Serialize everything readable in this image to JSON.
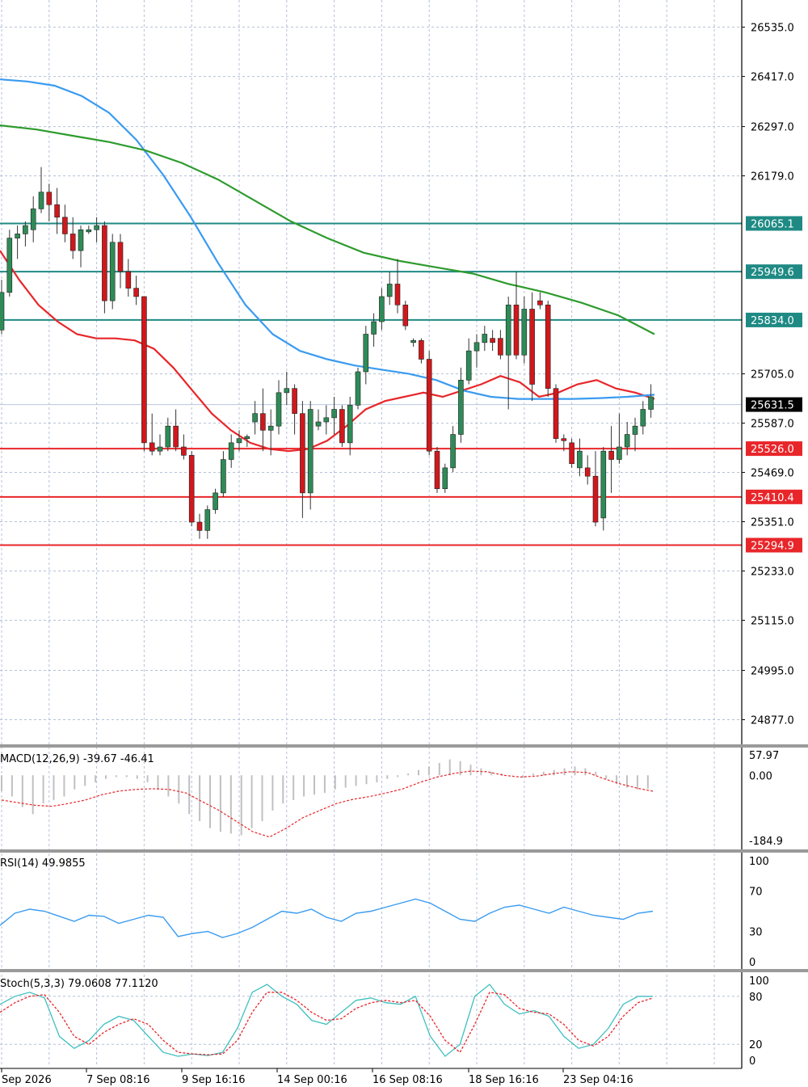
{
  "chart_data": [
    {
      "type": "candlestick",
      "panel": "price",
      "ylim": [
        24820,
        26600
      ],
      "y_ticks": [
        "26535.0",
        "26417.0",
        "26297.0",
        "26179.0",
        "26065.1",
        "25949.6",
        "25834.0",
        "25705.0",
        "25631.5",
        "25587.0",
        "25526.0",
        "25469.0",
        "25410.4",
        "25351.0",
        "25294.9",
        "25233.0",
        "25115.0",
        "24995.0",
        "24877.0"
      ],
      "current_price": "25631.5",
      "resistance_levels": [
        {
          "label": "26065.1",
          "value": 26065.1
        },
        {
          "label": "25949.6",
          "value": 25949.6
        },
        {
          "label": "25834.0",
          "value": 25834.0
        }
      ],
      "support_levels": [
        {
          "label": "25526.0",
          "value": 25526.0
        },
        {
          "label": "25410.4",
          "value": 25410.4
        },
        {
          "label": "25294.9",
          "value": 25294.9
        }
      ],
      "candles": [
        [
          25810,
          25930,
          25800,
          25900
        ],
        [
          25900,
          26050,
          25890,
          26030
        ],
        [
          26030,
          26060,
          25980,
          26040
        ],
        [
          26040,
          26070,
          26010,
          26060
        ],
        [
          26050,
          26130,
          26020,
          26100
        ],
        [
          26100,
          26200,
          26090,
          26140
        ],
        [
          26140,
          26160,
          26070,
          26110
        ],
        [
          26110,
          26150,
          26040,
          26080
        ],
        [
          26080,
          26110,
          26020,
          26040
        ],
        [
          26040,
          26080,
          25980,
          26000
        ],
        [
          26000,
          26060,
          25960,
          26050
        ],
        [
          26045,
          26060,
          26040,
          26050
        ],
        [
          26050,
          26080,
          26020,
          26060
        ],
        [
          26060,
          26070,
          25850,
          25880
        ],
        [
          25880,
          26040,
          25860,
          26020
        ],
        [
          26020,
          26040,
          25910,
          25950
        ],
        [
          25950,
          25980,
          25890,
          25910
        ],
        [
          25910,
          25940,
          25870,
          25890
        ],
        [
          25890,
          25890,
          25520,
          25540
        ],
        [
          25540,
          25610,
          25510,
          25520
        ],
        [
          25520,
          25560,
          25510,
          25530
        ],
        [
          25530,
          25600,
          25520,
          25580
        ],
        [
          25580,
          25620,
          25520,
          25530
        ],
        [
          25530,
          25560,
          25500,
          25510
        ],
        [
          25510,
          25520,
          25340,
          25350
        ],
        [
          25350,
          25370,
          25310,
          25330
        ],
        [
          25330,
          25390,
          25310,
          25380
        ],
        [
          25380,
          25430,
          25370,
          25420
        ],
        [
          25420,
          25520,
          25410,
          25500
        ],
        [
          25500,
          25560,
          25480,
          25540
        ],
        [
          25540,
          25570,
          25520,
          25550
        ],
        [
          25550,
          25560,
          25530,
          25555
        ],
        [
          25590,
          25640,
          25560,
          25610
        ],
        [
          25610,
          25670,
          25520,
          25570
        ],
        [
          25570,
          25620,
          25510,
          25580
        ],
        [
          25580,
          25690,
          25560,
          25660
        ],
        [
          25660,
          25710,
          25630,
          25670
        ],
        [
          25670,
          25680,
          25560,
          25610
        ],
        [
          25610,
          25640,
          25360,
          25420
        ],
        [
          25420,
          25640,
          25380,
          25620
        ],
        [
          25580,
          25620,
          25570,
          25590
        ],
        [
          25590,
          25630,
          25560,
          25600
        ],
        [
          25600,
          25650,
          25560,
          25620
        ],
        [
          25620,
          25630,
          25530,
          25540
        ],
        [
          25540,
          25650,
          25510,
          25630
        ],
        [
          25630,
          25720,
          25620,
          25710
        ],
        [
          25710,
          25820,
          25680,
          25800
        ],
        [
          25800,
          25850,
          25770,
          25830
        ],
        [
          25830,
          25910,
          25810,
          25890
        ],
        [
          25890,
          25950,
          25870,
          25920
        ],
        [
          25920,
          25980,
          25850,
          25870
        ],
        [
          25870,
          25880,
          25810,
          25820
        ],
        [
          25780,
          25790,
          25770,
          25785
        ],
        [
          25785,
          25790,
          25730,
          25740
        ],
        [
          25740,
          25760,
          25510,
          25520
        ],
        [
          25520,
          25530,
          25420,
          25430
        ],
        [
          25430,
          25490,
          25420,
          25480
        ],
        [
          25480,
          25580,
          25470,
          25560
        ],
        [
          25560,
          25720,
          25540,
          25690
        ],
        [
          25690,
          25790,
          25680,
          25760
        ],
        [
          25760,
          25800,
          25720,
          25780
        ],
        [
          25780,
          25820,
          25760,
          25800
        ],
        [
          25790,
          25810,
          25760,
          25780
        ],
        [
          25790,
          25810,
          25740,
          25750
        ],
        [
          25750,
          25890,
          25620,
          25870
        ],
        [
          25870,
          25950,
          25740,
          25750
        ],
        [
          25750,
          25890,
          25730,
          25860
        ],
        [
          25860,
          25900,
          25640,
          25680
        ],
        [
          25880,
          25900,
          25860,
          25870
        ],
        [
          25870,
          25880,
          25650,
          25670
        ],
        [
          25670,
          25680,
          25540,
          25550
        ],
        [
          25550,
          25560,
          25520,
          25545
        ],
        [
          25540,
          25550,
          25480,
          25490
        ],
        [
          25480,
          25550,
          25460,
          25520
        ],
        [
          25480,
          25510,
          25440,
          25460
        ],
        [
          25460,
          25520,
          25340,
          25350
        ],
        [
          25360,
          25530,
          25330,
          25520
        ],
        [
          25520,
          25580,
          25420,
          25500
        ],
        [
          25500,
          25610,
          25490,
          25530
        ],
        [
          25530,
          25590,
          25510,
          25560
        ],
        [
          25560,
          25600,
          25520,
          25580
        ],
        [
          25580,
          25640,
          25560,
          25620
        ],
        [
          25620,
          25680,
          25600,
          25650
        ]
      ],
      "series": [
        {
          "name": "",
          "color": "#e8262a",
          "values": [
            26000,
            25930,
            25870,
            25830,
            25800,
            25790,
            25790,
            25785,
            25765,
            25720,
            25665,
            25610,
            25570,
            25540,
            25525,
            25520,
            25525,
            25545,
            25580,
            25620,
            25640,
            25650,
            25660,
            25650,
            25665,
            25680,
            25700,
            25685,
            25650,
            25660,
            25680,
            25690,
            25670,
            25660,
            25645
          ]
        },
        {
          "name": "",
          "color": "#3a9bf0",
          "values": [
            26410,
            26405,
            26395,
            26370,
            26330,
            26265,
            26180,
            26080,
            25970,
            25870,
            25800,
            25760,
            25740,
            25725,
            25715,
            25705,
            25690,
            25665,
            25650,
            25645,
            25645,
            25645,
            25647,
            25650,
            25655
          ]
        },
        {
          "name": "",
          "color": "#2e9b2e",
          "values": [
            26300,
            26290,
            26275,
            26260,
            26240,
            26210,
            26170,
            26120,
            26070,
            26030,
            25995,
            25975,
            25960,
            25945,
            25920,
            25900,
            25875,
            25845,
            25800
          ]
        }
      ]
    },
    {
      "type": "histogram",
      "panel": "macd",
      "title": "MACD(12,26,9) -39.67 -46.41",
      "ylim": [
        -184.9,
        57.97
      ],
      "y_ticks": [
        "57.97",
        "0.00",
        "-184.9"
      ],
      "histogram": [
        -45,
        -60,
        -90,
        -110,
        -80,
        -70,
        -60,
        -40,
        -30,
        -20,
        -10,
        -5,
        -5,
        -10,
        -20,
        -40,
        -60,
        -80,
        -110,
        -130,
        -150,
        -160,
        -165,
        -170,
        -150,
        -130,
        -100,
        -80,
        -70,
        -60,
        -55,
        -50,
        -40,
        -35,
        -30,
        -25,
        -20,
        -10,
        -5,
        5,
        15,
        25,
        35,
        45,
        40,
        30,
        20,
        10,
        5,
        0,
        -5,
        5,
        10,
        15,
        20,
        25,
        20,
        10,
        -10,
        -25,
        -35,
        -40,
        -38
      ],
      "signal": [
        -70,
        -78,
        -85,
        -88,
        -80,
        -70,
        -55,
        -45,
        -40,
        -38,
        -40,
        -50,
        -75,
        -100,
        -130,
        -160,
        -175,
        -150,
        -120,
        -100,
        -80,
        -68,
        -60,
        -50,
        -38,
        -20,
        -5,
        5,
        12,
        10,
        0,
        -5,
        -2,
        5,
        10,
        8,
        -10,
        -25,
        -37,
        -46
      ]
    },
    {
      "type": "line",
      "panel": "rsi",
      "title": "RSI(14) 49.9855",
      "ylim": [
        0,
        100
      ],
      "y_ticks": [
        "100",
        "70",
        "30",
        "0"
      ],
      "series": [
        {
          "name": "",
          "color": "#3a9bf0",
          "values": [
            36,
            48,
            52,
            50,
            45,
            40,
            46,
            45,
            38,
            42,
            46,
            44,
            25,
            28,
            30,
            24,
            28,
            34,
            42,
            50,
            48,
            52,
            44,
            40,
            48,
            50,
            54,
            58,
            62,
            58,
            50,
            42,
            40,
            48,
            54,
            56,
            52,
            48,
            54,
            50,
            46,
            44,
            42,
            48,
            50
          ]
        }
      ]
    },
    {
      "type": "line",
      "panel": "stochastic",
      "title": "Stoch(5,3,3) 79.0608 77.1120",
      "ylim": [
        0,
        100
      ],
      "y_ticks": [
        "100",
        "80",
        "20",
        "0"
      ],
      "series": [
        {
          "name": "",
          "color": "#3fbfbf",
          "values": [
            70,
            80,
            85,
            78,
            30,
            15,
            25,
            45,
            55,
            50,
            30,
            10,
            5,
            8,
            6,
            10,
            40,
            85,
            95,
            80,
            70,
            50,
            45,
            60,
            75,
            78,
            72,
            70,
            80,
            30,
            5,
            20,
            80,
            95,
            70,
            58,
            62,
            55,
            30,
            15,
            20,
            40,
            70,
            80,
            80
          ]
        },
        {
          "name": "",
          "color": "#e8262a",
          "values": [
            60,
            72,
            80,
            82,
            60,
            30,
            20,
            35,
            45,
            52,
            45,
            25,
            10,
            8,
            7,
            8,
            25,
            60,
            85,
            85,
            75,
            60,
            50,
            52,
            65,
            72,
            75,
            72,
            75,
            55,
            25,
            10,
            45,
            85,
            82,
            65,
            60,
            58,
            45,
            25,
            18,
            30,
            55,
            72,
            78
          ]
        }
      ]
    }
  ],
  "x_labels": [
    "Sep 2026",
    "7 Sep 08:16",
    "9 Sep 16:16",
    "14 Sep 00:16",
    "16 Sep 08:16",
    "18 Sep 16:16",
    "23 Sep 04:16"
  ]
}
